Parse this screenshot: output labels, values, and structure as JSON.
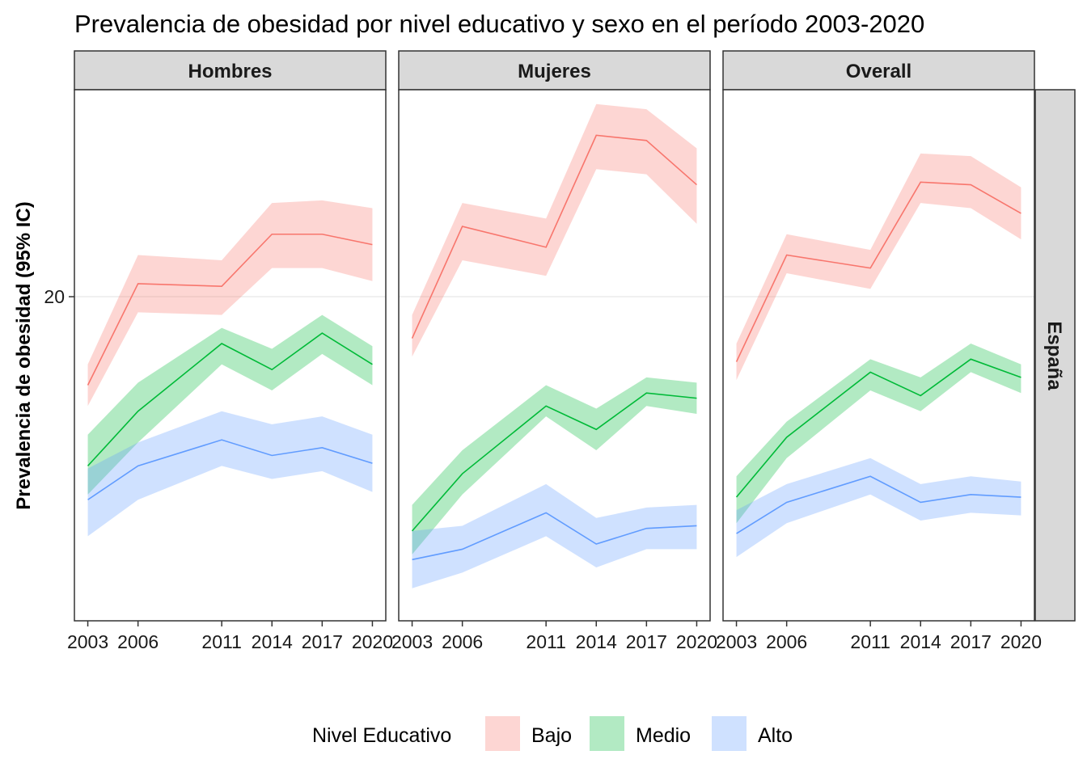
{
  "chart_data": {
    "type": "line",
    "title": "Prevalencia de obesidad por nivel educativo y sexo en el período 2003-2020",
    "xlabel": "",
    "ylabel": "Prevalencia de obesidad (95% IC)",
    "x": [
      2003,
      2006,
      2011,
      2014,
      2017,
      2020
    ],
    "x_tick_labels": [
      "2003",
      "2006",
      "2011",
      "2014",
      "2017",
      "2020"
    ],
    "y_ticks": [
      20
    ],
    "y_tick_labels": [
      "20"
    ],
    "ylim": [
      7.55,
      27.95
    ],
    "grid": true,
    "row_strip": "España",
    "legend": {
      "title": "Nivel Educativo",
      "position": "bottom",
      "entries": [
        "Bajo",
        "Medio",
        "Alto"
      ]
    },
    "colors": {
      "Bajo": {
        "line": "#F8766D",
        "fill": "#F8766D"
      },
      "Medio": {
        "line": "#00BA38",
        "fill": "#00BA38"
      },
      "Alto": {
        "line": "#619CFF",
        "fill": "#619CFF"
      }
    },
    "panels": [
      {
        "name": "Hombres",
        "series": [
          {
            "name": "Bajo",
            "values": [
              16.6,
              20.5,
              20.4,
              22.4,
              22.4,
              22.0
            ],
            "lower": [
              15.8,
              19.4,
              19.3,
              21.1,
              21.1,
              20.6
            ],
            "upper": [
              17.4,
              21.6,
              21.4,
              23.6,
              23.7,
              23.4
            ]
          },
          {
            "name": "Medio",
            "values": [
              13.5,
              15.6,
              18.2,
              17.2,
              18.6,
              17.4
            ],
            "lower": [
              12.4,
              14.4,
              17.4,
              16.4,
              17.8,
              16.6
            ],
            "upper": [
              14.7,
              16.7,
              18.8,
              18.0,
              19.3,
              18.1
            ]
          },
          {
            "name": "Alto",
            "values": [
              12.2,
              13.5,
              14.5,
              13.9,
              14.2,
              13.6
            ],
            "lower": [
              10.8,
              12.2,
              13.5,
              13.0,
              13.3,
              12.5
            ],
            "upper": [
              13.4,
              14.4,
              15.6,
              15.1,
              15.4,
              14.7
            ]
          }
        ]
      },
      {
        "name": "Mujeres",
        "series": [
          {
            "name": "Bajo",
            "values": [
              18.4,
              22.7,
              21.9,
              26.2,
              26.0,
              24.3
            ],
            "lower": [
              17.7,
              21.4,
              20.8,
              24.9,
              24.7,
              22.8
            ],
            "upper": [
              19.3,
              23.6,
              23.0,
              27.4,
              27.2,
              25.7
            ]
          },
          {
            "name": "Medio",
            "values": [
              11.0,
              13.2,
              15.8,
              14.9,
              16.3,
              16.1
            ],
            "lower": [
              10.1,
              12.4,
              15.4,
              14.1,
              15.8,
              15.5
            ],
            "upper": [
              12.0,
              14.1,
              16.6,
              15.7,
              16.9,
              16.7
            ]
          },
          {
            "name": "Alto",
            "values": [
              9.9,
              10.3,
              11.7,
              10.5,
              11.1,
              11.2
            ],
            "lower": [
              8.8,
              9.4,
              10.8,
              9.6,
              10.3,
              10.3
            ],
            "upper": [
              11.0,
              11.2,
              12.8,
              11.5,
              11.9,
              12.0
            ]
          }
        ]
      },
      {
        "name": "Overall",
        "series": [
          {
            "name": "Bajo",
            "values": [
              17.5,
              21.6,
              21.1,
              24.4,
              24.3,
              23.2
            ],
            "lower": [
              16.8,
              20.9,
              20.3,
              23.6,
              23.4,
              22.2
            ],
            "upper": [
              18.2,
              22.4,
              21.8,
              25.5,
              25.4,
              24.2
            ]
          },
          {
            "name": "Medio",
            "values": [
              12.3,
              14.6,
              17.1,
              16.2,
              17.6,
              16.9
            ],
            "lower": [
              11.3,
              13.8,
              16.4,
              15.6,
              17.1,
              16.3
            ],
            "upper": [
              13.1,
              15.2,
              17.6,
              16.9,
              18.2,
              17.4
            ]
          },
          {
            "name": "Alto",
            "values": [
              10.9,
              12.1,
              13.1,
              12.1,
              12.4,
              12.3
            ],
            "lower": [
              10.0,
              11.3,
              12.4,
              11.4,
              11.7,
              11.6
            ],
            "upper": [
              11.8,
              12.8,
              13.8,
              12.8,
              13.1,
              12.9
            ]
          }
        ]
      }
    ]
  }
}
